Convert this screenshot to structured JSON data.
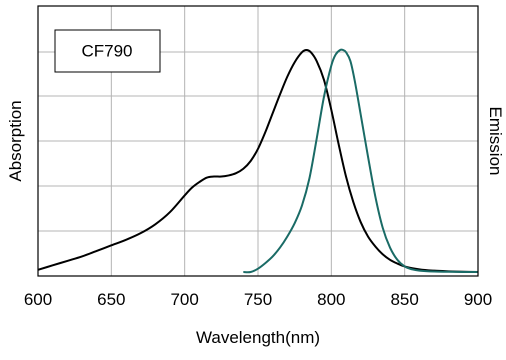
{
  "chart_data": {
    "type": "line",
    "title": "",
    "xlabel": "Wavelength(nm)",
    "ylabel_left": "Absorption",
    "ylabel_right": "Emission",
    "xlim": [
      600,
      900
    ],
    "ylim": [
      0,
      1.0
    ],
    "x_ticks": [
      600,
      650,
      700,
      750,
      800,
      850,
      900
    ],
    "x_tick_labels": [
      "600",
      "650",
      "700",
      "750",
      "800",
      "850",
      "900"
    ],
    "y_gridlines": [
      0.2,
      0.4,
      0.6,
      0.8,
      1.0
    ],
    "grid": true,
    "annotation": "CF790",
    "colors": {
      "absorption": "#000000",
      "emission": "#1a6b66",
      "grid": "#b4b4b4",
      "frame": "#000000"
    },
    "series": [
      {
        "x": [
          600,
          610,
          620,
          630,
          640,
          650,
          660,
          670,
          680,
          690,
          700,
          705,
          710,
          715,
          720,
          725,
          730,
          735,
          740,
          745,
          750,
          755,
          760,
          765,
          770,
          775,
          780,
          783,
          786,
          790,
          795,
          800,
          805,
          810,
          815,
          820,
          825,
          830,
          835,
          840,
          845,
          850,
          860,
          870,
          880,
          890,
          900
        ],
        "y": [
          0.01,
          0.03,
          0.05,
          0.07,
          0.095,
          0.12,
          0.145,
          0.175,
          0.215,
          0.27,
          0.345,
          0.38,
          0.405,
          0.425,
          0.43,
          0.43,
          0.435,
          0.445,
          0.465,
          0.5,
          0.555,
          0.63,
          0.715,
          0.8,
          0.88,
          0.945,
          0.99,
          1.0,
          0.99,
          0.95,
          0.865,
          0.73,
          0.575,
          0.43,
          0.315,
          0.225,
          0.16,
          0.115,
          0.08,
          0.055,
          0.038,
          0.025,
          0.012,
          0.006,
          0.003,
          0.001,
          0.0
        ]
      },
      {
        "x": [
          740,
          745,
          750,
          755,
          760,
          765,
          770,
          775,
          780,
          785,
          790,
          795,
          800,
          803,
          806,
          808,
          810,
          813,
          816,
          820,
          825,
          830,
          835,
          840,
          845,
          850,
          855,
          860,
          870,
          880,
          890,
          900
        ],
        "y": [
          0.0,
          0.0,
          0.015,
          0.04,
          0.07,
          0.11,
          0.16,
          0.22,
          0.3,
          0.42,
          0.6,
          0.79,
          0.93,
          0.98,
          1.0,
          1.0,
          0.99,
          0.95,
          0.86,
          0.71,
          0.52,
          0.34,
          0.2,
          0.11,
          0.055,
          0.025,
          0.012,
          0.006,
          0.002,
          0.001,
          0.0,
          0.0
        ]
      }
    ]
  }
}
